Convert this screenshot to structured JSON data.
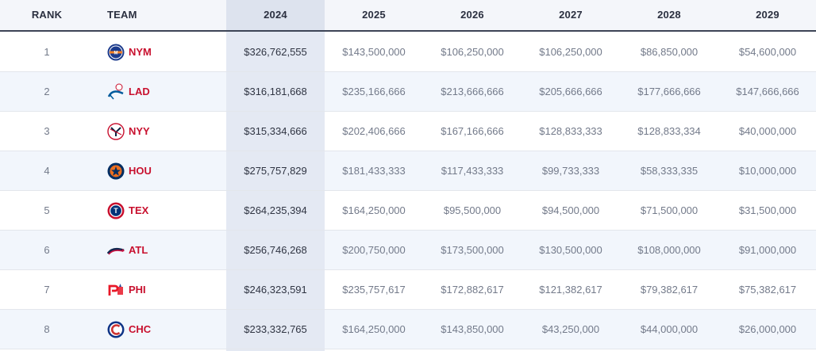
{
  "header": {
    "rank": "RANK",
    "team": "TEAM",
    "years": [
      "2024",
      "2025",
      "2026",
      "2027",
      "2028",
      "2029"
    ]
  },
  "colors": {
    "team_text": "#c8102e",
    "highlight_column": "#e4e9f3",
    "header_border": "#3d4456"
  },
  "rows": [
    {
      "rank": "1",
      "team": "NYM",
      "logo": "mets-logo-icon",
      "values": [
        "$326,762,555",
        "$143,500,000",
        "$106,250,000",
        "$106,250,000",
        "$86,850,000",
        "$54,600,000"
      ]
    },
    {
      "rank": "2",
      "team": "LAD",
      "logo": "dodgers-logo-icon",
      "values": [
        "$316,181,668",
        "$235,166,666",
        "$213,666,666",
        "$205,666,666",
        "$177,666,666",
        "$147,666,666"
      ]
    },
    {
      "rank": "3",
      "team": "NYY",
      "logo": "yankees-logo-icon",
      "values": [
        "$315,334,666",
        "$202,406,666",
        "$167,166,666",
        "$128,833,333",
        "$128,833,334",
        "$40,000,000"
      ]
    },
    {
      "rank": "4",
      "team": "HOU",
      "logo": "astros-logo-icon",
      "values": [
        "$275,757,829",
        "$181,433,333",
        "$117,433,333",
        "$99,733,333",
        "$58,333,335",
        "$10,000,000"
      ]
    },
    {
      "rank": "5",
      "team": "TEX",
      "logo": "rangers-logo-icon",
      "values": [
        "$264,235,394",
        "$164,250,000",
        "$95,500,000",
        "$94,500,000",
        "$71,500,000",
        "$31,500,000"
      ]
    },
    {
      "rank": "6",
      "team": "ATL",
      "logo": "braves-logo-icon",
      "values": [
        "$256,746,268",
        "$200,750,000",
        "$173,500,000",
        "$130,500,000",
        "$108,000,000",
        "$91,000,000"
      ]
    },
    {
      "rank": "7",
      "team": "PHI",
      "logo": "phillies-logo-icon",
      "values": [
        "$246,323,591",
        "$235,757,617",
        "$172,882,617",
        "$121,382,617",
        "$79,382,617",
        "$75,382,617"
      ]
    },
    {
      "rank": "8",
      "team": "CHC",
      "logo": "cubs-logo-icon",
      "values": [
        "$233,332,765",
        "$164,250,000",
        "$143,850,000",
        "$43,250,000",
        "$44,000,000",
        "$26,000,000"
      ]
    }
  ]
}
